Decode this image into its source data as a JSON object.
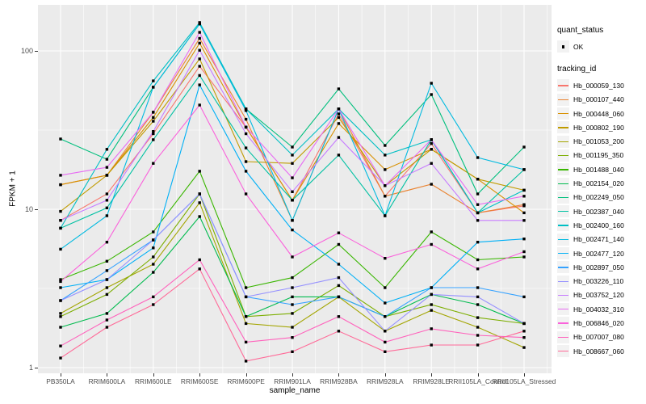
{
  "chart_data": {
    "type": "line",
    "title": "",
    "xlabel": "sample_name",
    "ylabel": "FPKM + 1",
    "y_scale": "log10",
    "y_ticks": [
      1,
      10,
      100
    ],
    "ylim": [
      1,
      195
    ],
    "grid": "on-white-over-gray-panel",
    "panel_bg": "#EBEBEB",
    "point_shape": "small-black-square",
    "legend_position": "right",
    "categories": [
      "PB350LA",
      "RRIM600LA",
      "RRIM600LE",
      "RRIM600SE",
      "RRIM600PE",
      "RRIM901LA",
      "RRIM928BA",
      "RRIM928LA",
      "RRIM928LE",
      "RRII105LA_Control",
      "RRII105LA_Stressed"
    ],
    "series": [
      {
        "name": "Hb_000059_130",
        "color": "#F8766D",
        "values": [
          8.5,
          12.5,
          30,
          80,
          33,
          11.4,
          40,
          12.1,
          26,
          9.5,
          10.5
        ]
      },
      {
        "name": "Hb_000107_440",
        "color": "#EA8331",
        "values": [
          14.3,
          16.4,
          41,
          120,
          37,
          8.5,
          43,
          12.1,
          14.4,
          9.5,
          10.7
        ]
      },
      {
        "name": "Hb_000448_060",
        "color": "#D89000",
        "values": [
          14.3,
          16.4,
          38,
          112,
          33,
          11.4,
          34.8,
          17.8,
          23.9,
          15.5,
          9.5
        ]
      },
      {
        "name": "Hb_000802_190",
        "color": "#C09B00",
        "values": [
          9.7,
          16.4,
          36,
          89,
          20,
          19.5,
          38,
          14.1,
          23.9,
          15.5,
          13.2
        ]
      },
      {
        "name": "Hb_001053_200",
        "color": "#A3A500",
        "values": [
          2.2,
          3.2,
          4.5,
          11,
          1.9,
          1.8,
          2.8,
          1.7,
          2.3,
          1.8,
          1.34
        ]
      },
      {
        "name": "Hb_001195_350",
        "color": "#7CAE00",
        "values": [
          2.1,
          2.9,
          5.0,
          12.5,
          2.1,
          2.2,
          3.3,
          2.1,
          2.5,
          2.07,
          1.9
        ]
      },
      {
        "name": "Hb_001488_040",
        "color": "#39B600",
        "values": [
          3.6,
          4.7,
          7.2,
          17.4,
          3.2,
          3.7,
          6.0,
          3.2,
          7.2,
          4.8,
          5.0
        ]
      },
      {
        "name": "Hb_002154_020",
        "color": "#00BB4E",
        "values": [
          1.8,
          2.2,
          4.0,
          9.0,
          2.1,
          2.8,
          2.8,
          2.1,
          2.9,
          2.5,
          1.9
        ]
      },
      {
        "name": "Hb_002249_050",
        "color": "#00BF7D",
        "values": [
          27.8,
          20.7,
          59,
          148,
          43,
          24.7,
          57.6,
          25.3,
          53,
          12.5,
          24.7
        ]
      },
      {
        "name": "Hb_002387_040",
        "color": "#00C1A3",
        "values": [
          7.6,
          10.2,
          27.5,
          70,
          24.4,
          11.4,
          22,
          9.1,
          27.5,
          9.5,
          17.8
        ]
      },
      {
        "name": "Hb_002400_160",
        "color": "#00BFC4",
        "values": [
          7.6,
          23.9,
          64.7,
          151,
          43,
          22,
          43,
          22,
          27.5,
          9.5,
          13.2
        ]
      },
      {
        "name": "Hb_002471_140",
        "color": "#00BAE0",
        "values": [
          5.6,
          9.1,
          59,
          148,
          42,
          8.5,
          43,
          9.1,
          62.5,
          21.2,
          17.8
        ]
      },
      {
        "name": "Hb_002477_120",
        "color": "#00B0F6",
        "values": [
          3.2,
          3.6,
          5.7,
          61,
          17.4,
          7.4,
          4.5,
          2.56,
          3.2,
          6.2,
          6.5
        ]
      },
      {
        "name": "Hb_002897_050",
        "color": "#35A2FF",
        "values": [
          2.65,
          4.1,
          6.4,
          12.5,
          2.8,
          2.5,
          2.8,
          2.1,
          3.2,
          3.2,
          2.8
        ]
      },
      {
        "name": "Hb_003226_110",
        "color": "#9590FF",
        "values": [
          2.65,
          3.6,
          6.4,
          12.5,
          2.8,
          3.2,
          3.7,
          1.7,
          2.9,
          2.8,
          1.9
        ]
      },
      {
        "name": "Hb_003752_120",
        "color": "#C77CFF",
        "values": [
          8.5,
          11.4,
          31,
          101,
          30,
          12.9,
          28.4,
          14.1,
          19.5,
          8.5,
          8.5
        ]
      },
      {
        "name": "Hb_004032_310",
        "color": "#E76BF3",
        "values": [
          16.4,
          18.4,
          41,
          131,
          33,
          15.8,
          43,
          14.1,
          27.5,
          10.7,
          12.1
        ]
      },
      {
        "name": "Hb_006846_020",
        "color": "#FA62DB",
        "values": [
          3.5,
          6.2,
          19.5,
          45.5,
          12.5,
          5.0,
          7.1,
          4.9,
          6.0,
          4.2,
          5.4
        ]
      },
      {
        "name": "Hb_007007_080",
        "color": "#FF62BC",
        "values": [
          1.37,
          2.0,
          2.8,
          4.8,
          1.45,
          1.55,
          2.1,
          1.45,
          1.76,
          1.6,
          1.55
        ]
      },
      {
        "name": "Hb_008667_060",
        "color": "#FF6A98",
        "values": [
          1.15,
          1.8,
          2.5,
          4.2,
          1.1,
          1.26,
          1.7,
          1.26,
          1.39,
          1.39,
          1.7
        ]
      }
    ],
    "legend": {
      "quant_status_title": "quant_status",
      "quant_status_items": [
        {
          "label": "OK",
          "symbol": "point"
        }
      ],
      "tracking_title": "tracking_id"
    }
  }
}
